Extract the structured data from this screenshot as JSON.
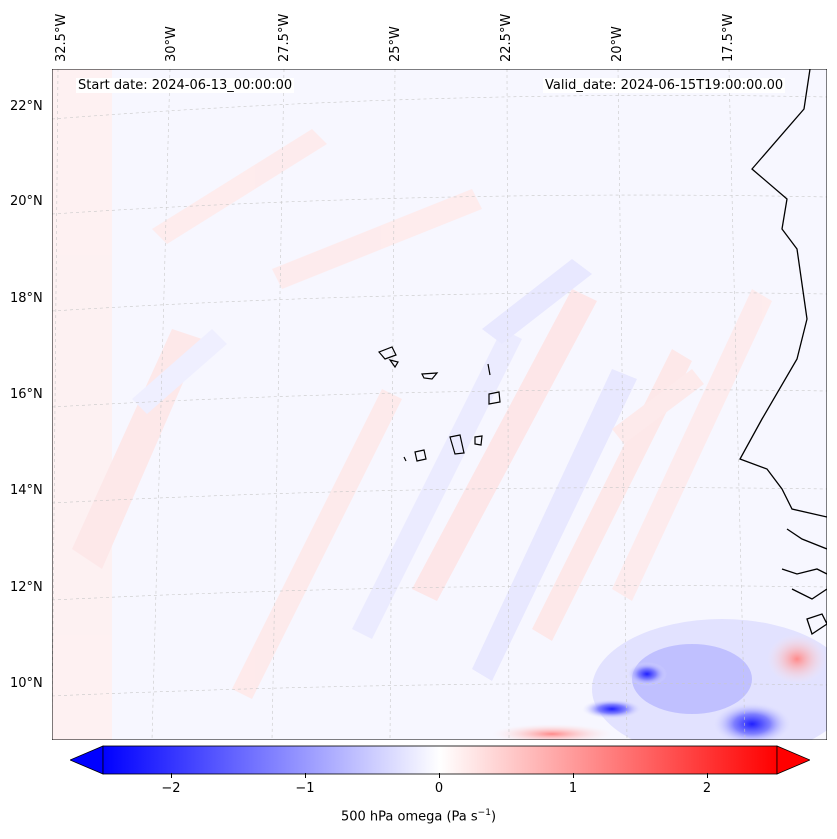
{
  "header": {
    "start_date": "Start date: 2024-06-13_00:00:00",
    "valid_date": "Valid_date: 2024-06-15T19:00:00.00"
  },
  "longitude_labels": [
    "32.5°W",
    "30°W",
    "27.5°W",
    "25°W",
    "22.5°W",
    "20°W",
    "17.5°W"
  ],
  "latitude_labels": [
    "22°N",
    "20°N",
    "18°N",
    "16°N",
    "14°N",
    "12°N",
    "10°N"
  ],
  "colorbar": {
    "ticks": [
      "−2",
      "−1",
      "0",
      "1",
      "2"
    ],
    "label_prefix": "500 hPa omega (Pa s",
    "label_exp": "−1",
    "label_suffix": ")",
    "min_color": "#0000ff",
    "mid_color": "#ffffff",
    "max_color": "#ff0000"
  },
  "icons": {
    "coastline": "coastline-icon"
  }
}
